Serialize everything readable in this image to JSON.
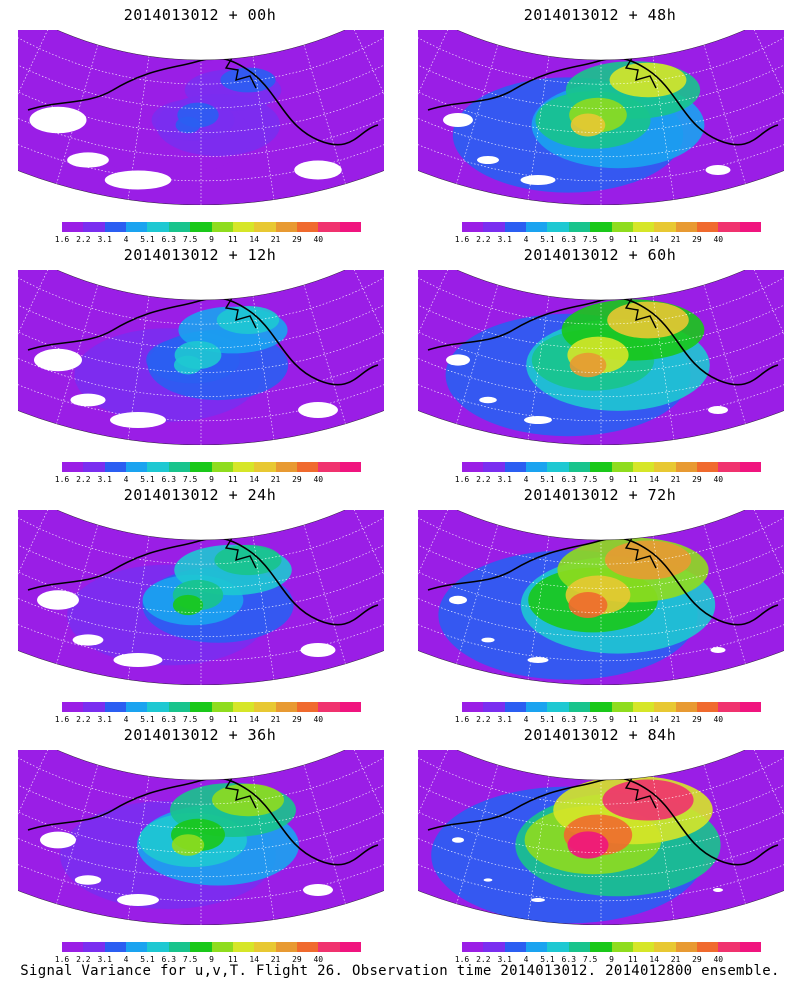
{
  "panels": [
    {
      "title": "2014013012 + 00h",
      "level": 0.15
    },
    {
      "title": "2014013012 + 48h",
      "level": 0.6
    },
    {
      "title": "2014013012 + 12h",
      "level": 0.3
    },
    {
      "title": "2014013012 + 60h",
      "level": 0.7
    },
    {
      "title": "2014013012 + 24h",
      "level": 0.4
    },
    {
      "title": "2014013012 + 72h",
      "level": 0.8
    },
    {
      "title": "2014013012 + 36h",
      "level": 0.5
    },
    {
      "title": "2014013012 + 84h",
      "level": 0.9
    }
  ],
  "colorbar": {
    "labels": [
      "1.6",
      "2.2",
      "3.1",
      "4",
      "5.1",
      "6.3",
      "7.5",
      "9",
      "11",
      "14",
      "21",
      "29",
      "40"
    ],
    "colors": [
      "#9a1ee6",
      "#7a2ef0",
      "#2a5ef2",
      "#1aa3f0",
      "#1ec8d2",
      "#18c48c",
      "#19c819",
      "#8fdc1e",
      "#d6e628",
      "#e8c832",
      "#e89a32",
      "#f06a2e",
      "#f0326e",
      "#f0147e"
    ]
  },
  "caption": "Signal Variance for u,v,T. Flight 26. Observation time 2014013012. 2014012800 ensemble."
}
